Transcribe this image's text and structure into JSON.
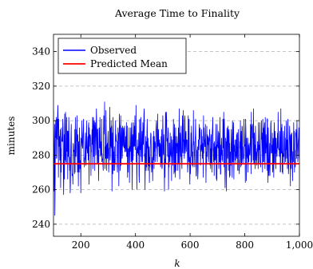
{
  "chart_data": {
    "type": "line",
    "title": "Average Time to Finality",
    "xlabel": "k",
    "ylabel": "minutes",
    "xlim": [
      100,
      1000
    ],
    "ylim": [
      233,
      350
    ],
    "grid": "horizontal dashed",
    "legend_placement": "top-left",
    "x_ticks": [
      "200",
      "400",
      "600",
      "800",
      "1,000"
    ],
    "y_ticks": [
      "240",
      "260",
      "280",
      "300",
      "320",
      "340"
    ],
    "x_tick_values": [
      200,
      400,
      600,
      800,
      1000
    ],
    "y_tick_values": [
      240,
      260,
      280,
      300,
      320,
      340
    ],
    "series": [
      {
        "name": "Observed",
        "color": "#0000ff",
        "x_start": 100,
        "x_end": 1000,
        "x_step": 1,
        "values": [
          306,
          280,
          259,
          287,
          298,
          245,
          263,
          291,
          300,
          290,
          302,
          278,
          279,
          301,
          289,
          303,
          309,
          299,
          267,
          301,
          286,
          285,
          291,
          277,
          291,
          295,
          261,
          284,
          270,
          296,
          291,
          288,
          288,
          288,
          301,
          296,
          271,
          257,
          272,
          292,
          266,
          304,
          277,
          283,
          305,
          276,
          277,
          275,
          302,
          282,
          294,
          294,
          266,
          294,
          283,
          279,
          302,
          291,
          278,
          271,
          279,
          258,
          263,
          282,
          290,
          298,
          275,
          274,
          268,
          269,
          269,
          263,
          287,
          286,
          282,
          283,
          278,
          269,
          295,
          270,
          302,
          281,
          279,
          282,
          295,
          288,
          303,
          283,
          270,
          292,
          282,
          262,
          288,
          277,
          270,
          296,
          288,
          272,
          277,
          276,
          258,
          290,
          285,
          288,
          300,
          289,
          284,
          284,
          291,
          294,
          301,
          276,
          277,
          273,
          279,
          277,
          286,
          293,
          275,
          274,
          286,
          300,
          284,
          284,
          281,
          288,
          291,
          277,
          297,
          299,
          263,
          296,
          285,
          291,
          292,
          291,
          288,
          268,
          282,
          282,
          289,
          295,
          286,
          302,
          272,
          290,
          302,
          279,
          293,
          300,
          299,
          271,
          295,
          299,
          294,
          280,
          290,
          307,
          300,
          286,
          275,
          295,
          295,
          275,
          283,
          265,
          279,
          296,
          285,
          284,
          302,
          290,
          279,
          282,
          288,
          280,
          301,
          276,
          281,
          277,
          278,
          274,
          271,
          292,
          303,
          299,
          292,
          311,
          272,
          282,
          285,
          278,
          306,
          291,
          271,
          286,
          278,
          287,
          278,
          289,
          294,
          281,
          270,
          279,
          284,
          284,
          308,
          277,
          279,
          296,
          285,
          300,
          284,
          297,
          259,
          279,
          293,
          269,
          302,
          291,
          271,
          282,
          275,
          285,
          271,
          278,
          275,
          300,
          288,
          292,
          288,
          288,
          288,
          274,
          270,
          279,
          296,
          292,
          293,
          262,
          277,
          304,
          297,
          297,
          271,
          275,
          303,
          274,
          282,
          291,
          296,
          278,
          280,
          297,
          289,
          285,
          295,
          296,
          284,
          285,
          297,
          282,
          282,
          285,
          291,
          285,
          282,
          299,
          279,
          281,
          297,
          267,
          284,
          270,
          278,
          284,
          282,
          296,
          264,
          277,
          285,
          282,
          289,
          296,
          276,
          277,
          298,
          299,
          260,
          279,
          292,
          277,
          282,
          299,
          285,
          286,
          297,
          285,
          303,
          283,
          290,
          290,
          309,
          276,
          284,
          260,
          279,
          289,
          281,
          285,
          283,
          280,
          293,
          268,
          264,
          300,
          301,
          283,
          286,
          279,
          302,
          276,
          277,
          287,
          294,
          287,
          276,
          299,
          290,
          286,
          295,
          304,
          307,
          279,
          281,
          260,
          279,
          291,
          283,
          271,
          288,
          273,
          294,
          301,
          284,
          286,
          271,
          290,
          274,
          274,
          285,
          264,
          279,
          273,
          283,
          288,
          293,
          292,
          282,
          270,
          273,
          276,
          279,
          265,
          280,
          291,
          277,
          294,
          272,
          291,
          282,
          288,
          276,
          287,
          284,
          294,
          298,
          300,
          285,
          280,
          276,
          304,
          288,
          285,
          295,
          290,
          282,
          279,
          289,
          279,
          287,
          286,
          273,
          276,
          291,
          275,
          295,
          272,
          273,
          283,
          303,
          292,
          281,
          280,
          292,
          285,
          259,
          278,
          267,
          285,
          305,
          275,
          303,
          305,
          300,
          288,
          290,
          287,
          279,
          293,
          296,
          260,
          280,
          273,
          287,
          287,
          276,
          293,
          280,
          281,
          279,
          291,
          265,
          281,
          281,
          289,
          279,
          274,
          286,
          301,
          287,
          269,
          290,
          298,
          270,
          291,
          267,
          296,
          271,
          287,
          283,
          281,
          291,
          285,
          287,
          271,
          279,
          296,
          275,
          285,
          307,
          284,
          266,
          286,
          293,
          288,
          279,
          297,
          278,
          276,
          272,
          290,
          303,
          282,
          281,
          306,
          288,
          289,
          282,
          278,
          300,
          303,
          281,
          284,
          293,
          294,
          282,
          289,
          287,
          289,
          280,
          270,
          274,
          303,
          296,
          276,
          301,
          280,
          275,
          263,
          279,
          269,
          275,
          293,
          279,
          297,
          288,
          285,
          274,
          282,
          276,
          273,
          306,
          286,
          288,
          283,
          278,
          273,
          289,
          291,
          301,
          288,
          268,
          268,
          277,
          283,
          282,
          285,
          266,
          271,
          289,
          288,
          283,
          298,
          289,
          292,
          296,
          293,
          274,
          283,
          286,
          282,
          295,
          283,
          291,
          278,
          283,
          287,
          267,
          303,
          281,
          296,
          290,
          288,
          285,
          285,
          298,
          286,
          264,
          282,
          275,
          297,
          279,
          292,
          289,
          286,
          291,
          276,
          279,
          290,
          288,
          295,
          292,
          274,
          284,
          272,
          289,
          292,
          275,
          284,
          270,
          293,
          296,
          302,
          284,
          282,
          276,
          287,
          268,
          288,
          277,
          285,
          277,
          279,
          298,
          285,
          266,
          286,
          265,
          298,
          285,
          288,
          284,
          294,
          286,
          272,
          277,
          293,
          276,
          302,
          288,
          269,
          269,
          286,
          280,
          290,
          282,
          277,
          283,
          276,
          301,
          285,
          284,
          305,
          273,
          301,
          292,
          274,
          261,
          271,
          290,
          285,
          288,
          259,
          288,
          296,
          294,
          278,
          282,
          297,
          271,
          292,
          295,
          291,
          267,
          287,
          268,
          282,
          275,
          274,
          288,
          295,
          285,
          275,
          267,
          300,
          296,
          276,
          284,
          299,
          266,
          279,
          286,
          282,
          289,
          277,
          282,
          275,
          289,
          279,
          292,
          278,
          293,
          293,
          271,
          284,
          285,
          295,
          271,
          277,
          269,
          280,
          288,
          284,
          300,
          273,
          285,
          294,
          274,
          279,
          297,
          296,
          278,
          275,
          278,
          285,
          278,
          301,
          293,
          287,
          285,
          286,
          264,
          301,
          295,
          285,
          265,
          290,
          279,
          280,
          278,
          290,
          270,
          286,
          277,
          276,
          287,
          283,
          280,
          281,
          287,
          298,
          291,
          269,
          305,
          276,
          297,
          296,
          298,
          290,
          290,
          277,
          307,
          275,
          292,
          293,
          275,
          286,
          272,
          297,
          290,
          277,
          282,
          274,
          277,
          284,
          282,
          288,
          282,
          272,
          299,
          275,
          286,
          283,
          284,
          299,
          276,
          276,
          273,
          279,
          286,
          300,
          289,
          293,
          284,
          270,
          301,
          276,
          296,
          294,
          276,
          297,
          299,
          280,
          272,
          302,
          282,
          281,
          292,
          284,
          287,
          271,
          301,
          301,
          276,
          264,
          296,
          284,
          268,
          272,
          279,
          287,
          268,
          279,
          288,
          298,
          300,
          281,
          286,
          285,
          281,
          293,
          270,
          272,
          290,
          286,
          267,
          292,
          299,
          276,
          275,
          294,
          281,
          290,
          272,
          290,
          283,
          282,
          279,
          286,
          293,
          284,
          305,
          289,
          283,
          284,
          283,
          279,
          294,
          290,
          270,
          271,
          307,
          281,
          296,
          281,
          298,
          270,
          282,
          269,
          290,
          294,
          279,
          280,
          281,
          275,
          297,
          283,
          283,
          276,
          290,
          283,
          300,
          278,
          284,
          289,
          272,
          298,
          301,
          278,
          269,
          274,
          278,
          289,
          297,
          292,
          286,
          262,
          291,
          292,
          272,
          292,
          293,
          280,
          276,
          265,
          282,
          282,
          276,
          299,
          283,
          294,
          270,
          283,
          278,
          273,
          293,
          291,
          295,
          289,
          278,
          300,
          288,
          285,
          276,
          282,
          288,
          290,
          296,
          279,
          277,
          295,
          298,
          266,
          285,
          293,
          308,
          261,
          281,
          278,
          277,
          300,
          279,
          293,
          281,
          281,
          300,
          292,
          299,
          269,
          287,
          284,
          303,
          295,
          262,
          283,
          284,
          282,
          281,
          279,
          268,
          294,
          273,
          303,
          274,
          278,
          268,
          273,
          294,
          270,
          291,
          284,
          300,
          277,
          302,
          281,
          301,
          283,
          275,
          287,
          269,
          279,
          275,
          280,
          301,
          279,
          298,
          294,
          299,
          278,
          292,
          288,
          301,
          280,
          289,
          290,
          269,
          271,
          267,
          300,
          298,
          277,
          279,
          294,
          287,
          289,
          275,
          285,
          299,
          288,
          278,
          287,
          268,
          266,
          295,
          278,
          283,
          308,
          293,
          288,
          265,
          286,
          301,
          283,
          264,
          271,
          272,
          270,
          302,
          282,
          281,
          291,
          287,
          272,
          294,
          293,
          281,
          277,
          284,
          305,
          290,
          281,
          286,
          286,
          284,
          299,
          260,
          285,
          269,
          268,
          280
        ]
      },
      {
        "name": "Predicted Mean",
        "color": "#ff0000",
        "x": [
          100,
          1000
        ],
        "values": [
          275,
          275
        ]
      }
    ]
  }
}
